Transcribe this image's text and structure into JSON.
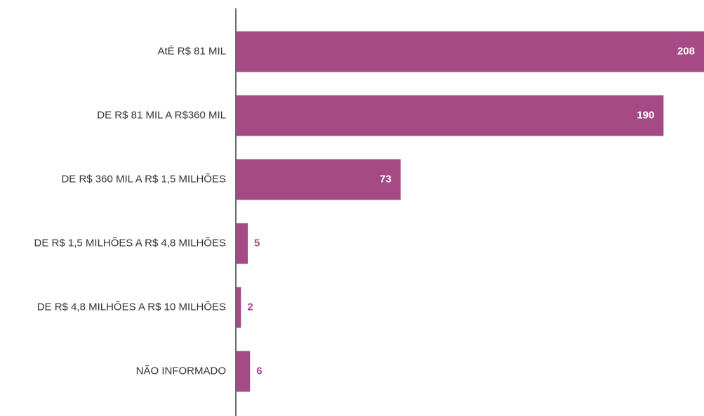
{
  "chart_data": {
    "type": "bar",
    "orientation": "horizontal",
    "categories": [
      "AtÉ R$ 81 MIL",
      "DE R$ 81 MIL A R$360 MIL",
      "DE R$ 360 MIL A R$ 1,5 MILHÕES",
      "DE R$ 1,5 MILHÕES A R$ 4,8 MILHÕES",
      "DE R$ 4,8 MILHÕES A R$ 10 MILHÕES",
      "NÃO INFORMADO"
    ],
    "values": [
      208,
      190,
      73,
      5,
      2,
      6
    ],
    "xlim": [
      0,
      208
    ],
    "title": "",
    "xlabel": "",
    "ylabel": "",
    "grid": false,
    "legend": "none",
    "colors": {
      "bar": "#A54A85",
      "label_inside": "#ffffff",
      "label_outside": "#A54A85",
      "axis": "#6b6b6b",
      "category_text": "#333333"
    }
  }
}
